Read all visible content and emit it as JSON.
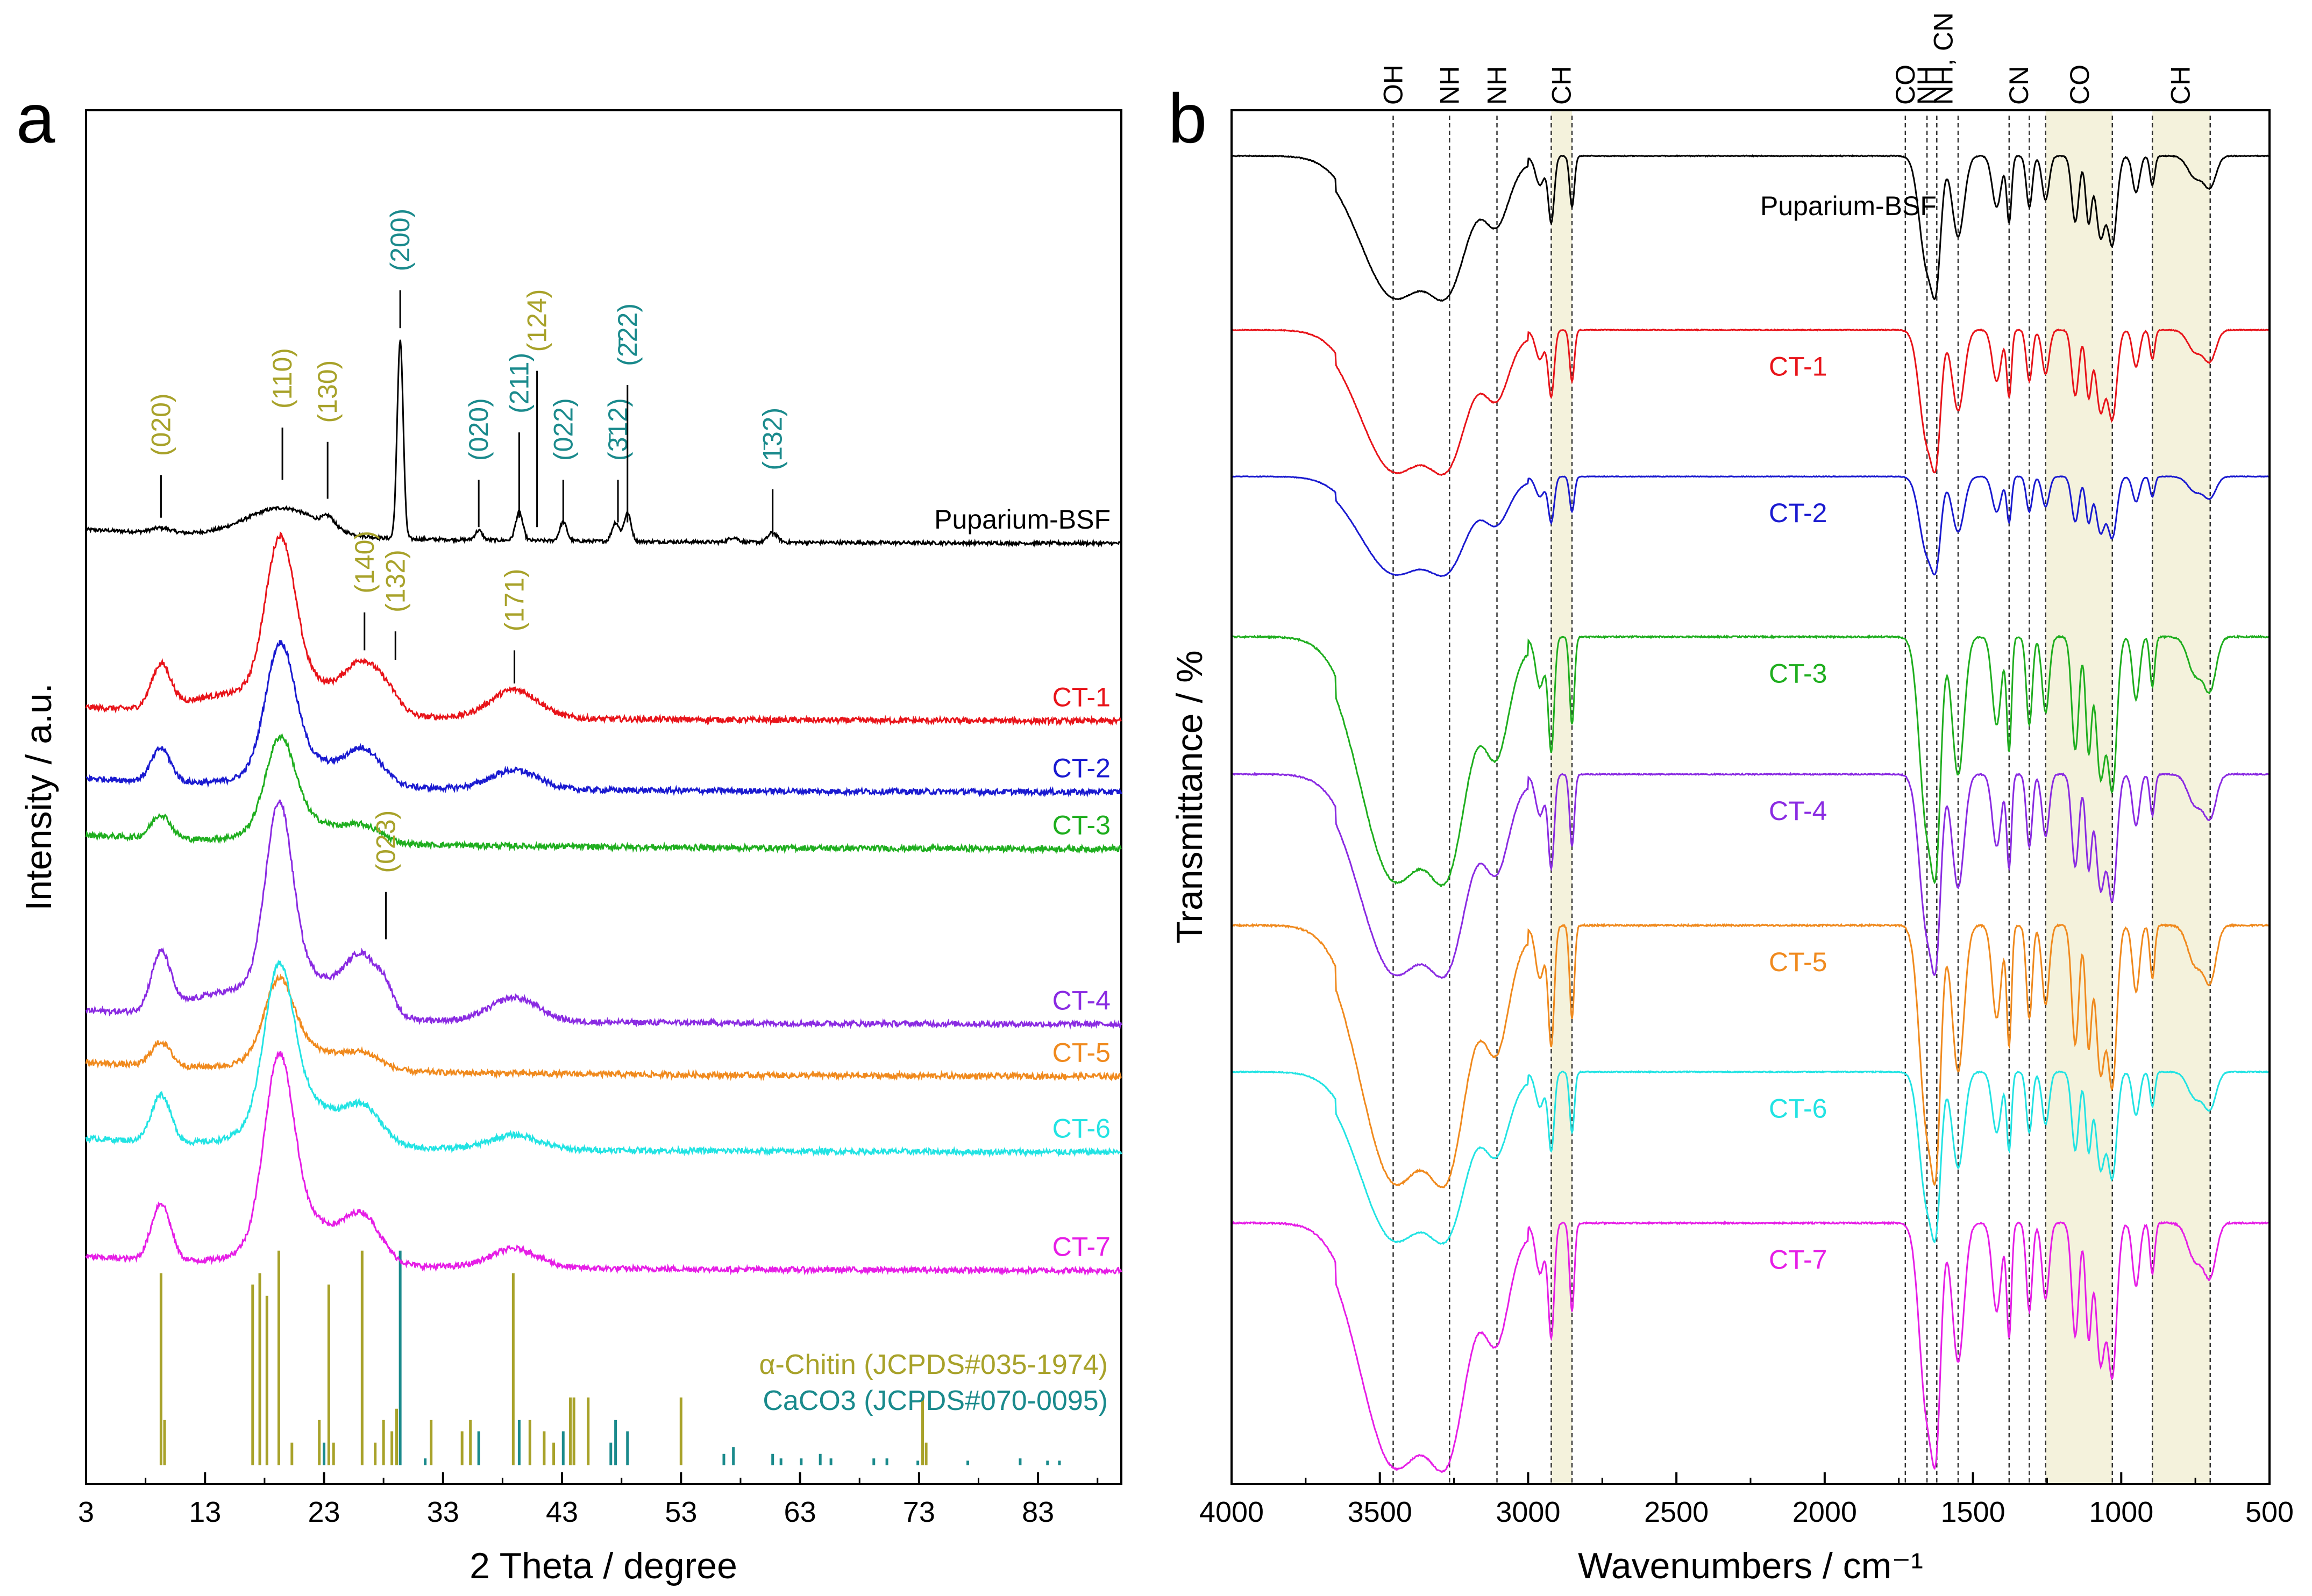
{
  "panels": {
    "a_letter": "a",
    "b_letter": "b"
  },
  "colors": {
    "black": "#000000",
    "red": "#e8141a",
    "blue": "#1a1ad0",
    "green": "#1fae1f",
    "purple": "#8a2be2",
    "orange": "#f08a1e",
    "cyan": "#22e3e3",
    "magenta": "#e61ee6",
    "olive": "#a8a22a",
    "teal": "#1a8a8c",
    "band": "#f4f2dc"
  },
  "chart_data": [
    {
      "type": "line",
      "title": "",
      "xlabel": "2 Theta / degree",
      "ylabel": "Intensity / a.u.",
      "xlim": [
        3,
        90
      ],
      "xticks": [
        3,
        13,
        23,
        33,
        43,
        53,
        63,
        73,
        83
      ],
      "xtick_labels": [
        "3",
        "13",
        "23",
        "33",
        "43",
        "53",
        "63",
        "73",
        "83"
      ],
      "series": [
        {
          "name": "Puparium-BSF",
          "color": "#000000",
          "baseline": 0.915,
          "slope": 0.0,
          "peaks": [
            [
              9.3,
              0.01,
              0.8
            ],
            [
              19.5,
              0.06,
              3.0
            ],
            [
              23.4,
              0.02,
              0.5
            ],
            [
              29.4,
              0.42,
              0.25
            ],
            [
              36.0,
              0.02,
              0.3
            ],
            [
              39.4,
              0.06,
              0.3
            ],
            [
              43.1,
              0.04,
              0.3
            ],
            [
              47.5,
              0.04,
              0.3
            ],
            [
              48.5,
              0.06,
              0.3
            ],
            [
              57.4,
              0.01,
              0.4
            ],
            [
              60.7,
              0.02,
              0.4
            ]
          ]
        },
        {
          "name": "CT-1",
          "color": "#e8141a",
          "baseline": 1.29,
          "slope": 0.0,
          "peaks": [
            [
              9.3,
              0.09,
              0.8
            ],
            [
              19.3,
              0.3,
              1.2
            ],
            [
              20.8,
              0.08,
              3.0
            ],
            [
              26.3,
              0.1,
              1.5
            ],
            [
              28.5,
              0.03,
              1.0
            ],
            [
              39.0,
              0.06,
              2.0
            ],
            [
              14,
              0.03,
              3
            ]
          ]
        },
        {
          "name": "CT-2",
          "color": "#1a1ad0",
          "baseline": 1.44,
          "slope": 0.0,
          "peaks": [
            [
              9.3,
              0.07,
              0.8
            ],
            [
              19.3,
              0.25,
              1.2
            ],
            [
              21,
              0.06,
              3.0
            ],
            [
              26.4,
              0.07,
              1.5
            ],
            [
              39.0,
              0.04,
              2.0
            ]
          ]
        },
        {
          "name": "CT-3",
          "color": "#1fae1f",
          "baseline": 1.56,
          "slope": 0.0,
          "peaks": [
            [
              9.3,
              0.05,
              0.8
            ],
            [
              19.3,
              0.18,
              1.2
            ],
            [
              21,
              0.05,
              3.0
            ],
            [
              26.4,
              0.03,
              1.5
            ]
          ]
        },
        {
          "name": "CT-4",
          "color": "#8a2be2",
          "baseline": 1.93,
          "slope": 0.0,
          "peaks": [
            [
              9.3,
              0.12,
              0.8
            ],
            [
              19.2,
              0.36,
              1.1
            ],
            [
              20.8,
              0.1,
              3.0
            ],
            [
              26.3,
              0.12,
              1.5
            ],
            [
              28.2,
              0.03,
              0.6
            ],
            [
              39.0,
              0.05,
              2.0
            ],
            [
              14,
              0.04,
              3
            ]
          ]
        },
        {
          "name": "CT-5",
          "color": "#f08a1e",
          "baseline": 2.04,
          "slope": 0.0,
          "peaks": [
            [
              9.3,
              0.05,
              0.8
            ],
            [
              19.2,
              0.15,
              1.2
            ],
            [
              21,
              0.05,
              3.0
            ],
            [
              26.4,
              0.03,
              1.5
            ]
          ]
        },
        {
          "name": "CT-6",
          "color": "#22e3e3",
          "baseline": 2.2,
          "slope": 0.0,
          "peaks": [
            [
              9.3,
              0.1,
              0.8
            ],
            [
              19.2,
              0.3,
              1.2
            ],
            [
              21,
              0.1,
              3.0
            ],
            [
              26.4,
              0.07,
              1.5
            ],
            [
              39.0,
              0.03,
              2.0
            ]
          ]
        },
        {
          "name": "CT-7",
          "color": "#e61ee6",
          "baseline": 2.45,
          "slope": 0.0,
          "peaks": [
            [
              9.3,
              0.12,
              0.8
            ],
            [
              19.2,
              0.36,
              1.2
            ],
            [
              21,
              0.1,
              3.0
            ],
            [
              26.3,
              0.09,
              1.5
            ],
            [
              39.0,
              0.04,
              2.0
            ]
          ]
        }
      ],
      "peak_labels_olive": [
        {
          "label": "(020)",
          "x": 9.3,
          "line": [
            0.86,
            0.77
          ],
          "text_y": 0.73
        },
        {
          "label": "(110)",
          "x": 19.5,
          "line": [
            0.78,
            0.67
          ],
          "text_y": 0.63
        },
        {
          "label": "(130)",
          "x": 23.3,
          "line": [
            0.82,
            0.7
          ],
          "text_y": 0.66
        },
        {
          "label": "(124)",
          "x": 40.9,
          "line": [
            0.88,
            0.55
          ],
          "text_y": 0.51
        },
        {
          "label": "(140)",
          "x": 26.4,
          "line": [
            1.14,
            1.06
          ],
          "text_y": 1.02
        },
        {
          "label": "(132)",
          "x": 29.0,
          "line": [
            1.16,
            1.1
          ],
          "text_y": 1.06
        },
        {
          "label": "(171)",
          "x": 39.0,
          "line": [
            1.21,
            1.14
          ],
          "text_y": 1.1
        },
        {
          "label": "(023)",
          "x": 28.2,
          "line": [
            1.75,
            1.65
          ],
          "text_y": 1.61
        }
      ],
      "peak_labels_teal": [
        {
          "label": "(200)",
          "x": 29.4,
          "line": [
            0.46,
            0.38
          ],
          "text_y": 0.34
        },
        {
          "label": "(020)",
          "x": 36.0,
          "line": [
            0.88,
            0.78
          ],
          "text_y": 0.74
        },
        {
          "label": "(211)",
          "x": 39.4,
          "line": [
            0.86,
            0.68
          ],
          "text_y": 0.64
        },
        {
          "label": "(022)",
          "x": 43.1,
          "line": [
            0.87,
            0.78
          ],
          "text_y": 0.74
        },
        {
          "label": "(3̄12)",
          "x": 47.7,
          "line": [
            0.87,
            0.78
          ],
          "text_y": 0.74
        },
        {
          "label": "(2̄22)",
          "x": 48.5,
          "line": [
            0.87,
            0.58
          ],
          "text_y": 0.54
        },
        {
          "label": "(1̄32)",
          "x": 60.7,
          "line": [
            0.9,
            0.8
          ],
          "text_y": 0.76
        }
      ],
      "reference_olive": {
        "label": "α-Chitin (JCPDS#035-1974)",
        "positions": [
          9.3,
          9.6,
          17.0,
          17.6,
          18.2,
          19.2,
          20.3,
          22.6,
          23.4,
          23.8,
          26.2,
          27.3,
          28.0,
          28.7,
          29.1,
          32.0,
          34.6,
          35.3,
          38.9,
          40.3,
          41.5,
          42.3,
          43.7,
          44.0,
          45.2,
          53.0,
          73.3,
          73.6
        ],
        "heights": [
          0.85,
          0.2,
          0.8,
          0.85,
          0.75,
          0.95,
          0.1,
          0.2,
          0.8,
          0.1,
          0.95,
          0.1,
          0.2,
          0.15,
          0.25,
          0.2,
          0.15,
          0.2,
          0.85,
          0.2,
          0.15,
          0.1,
          0.3,
          0.3,
          0.3,
          0.3,
          0.3,
          0.1
        ]
      },
      "reference_teal": {
        "label": "CaCO3 (JCPDS#070-0095)",
        "positions": [
          23.0,
          29.4,
          31.5,
          36.0,
          39.4,
          43.1,
          47.1,
          47.5,
          48.5,
          56.6,
          57.4,
          60.7,
          61.4,
          63.1,
          64.7,
          65.6,
          69.2,
          70.3,
          72.9,
          77.1,
          81.5,
          83.8,
          84.8
        ],
        "heights": [
          0.1,
          0.95,
          0.03,
          0.15,
          0.2,
          0.15,
          0.1,
          0.2,
          0.15,
          0.05,
          0.08,
          0.05,
          0.03,
          0.03,
          0.05,
          0.03,
          0.03,
          0.03,
          0.02,
          0.02,
          0.03,
          0.02,
          0.02
        ]
      }
    },
    {
      "type": "line",
      "title": "",
      "xlabel": "Wavenumbers / cm⁻¹",
      "ylabel": "Transmittance / %",
      "xlim": [
        4000,
        500
      ],
      "xticks": [
        4000,
        3500,
        3000,
        2500,
        2000,
        1500,
        1000,
        500
      ],
      "xtick_labels": [
        "4000",
        "3500",
        "3000",
        "2500",
        "2000",
        "1500",
        "1000",
        "500"
      ],
      "band_markers": [
        {
          "label": "OH",
          "x": 3455
        },
        {
          "label": "NH",
          "x": 3265
        },
        {
          "label": "NH",
          "x": 3105
        },
        {
          "label": "CH",
          "x": 2922
        },
        {
          "label": "CH",
          "x": 2852
        },
        {
          "label": "CO",
          "x": 1728
        },
        {
          "label": "NH",
          "x": 1655
        },
        {
          "label": "NH, CN",
          "x": 1622
        },
        {
          "label": "CN",
          "x": 1550
        },
        {
          "label": "CN",
          "x": 1378
        },
        {
          "label": "CO",
          "x": 1310
        },
        {
          "label": "CO",
          "x": 1255
        },
        {
          "label": "CH",
          "x": 1030
        },
        {
          "label": "CH",
          "x": 895
        },
        {
          "label": "CH",
          "x": 700
        }
      ],
      "band_top_labels": [
        {
          "label": "OH",
          "x": 3455
        },
        {
          "label": "NH",
          "x": 3265
        },
        {
          "label": "NH",
          "x": 3105
        },
        {
          "label": "CH",
          "x": 2887
        },
        {
          "label": "CO",
          "x": 1728
        },
        {
          "label": "NH",
          "x": 1655
        },
        {
          "label": "NH, CN",
          "x": 1600
        },
        {
          "label": "CN",
          "x": 1345
        },
        {
          "label": "CO",
          "x": 1140
        },
        {
          "label": "CH",
          "x": 800
        }
      ],
      "shaded_bands": [
        [
          2922,
          2852
        ],
        [
          1255,
          1030
        ],
        [
          895,
          700
        ]
      ],
      "series": [
        {
          "name": "Puparium-BSF",
          "color": "#000000",
          "offset": 0.0,
          "scale": 0.32,
          "label_x": 1920
        },
        {
          "name": "CT-1",
          "color": "#e8141a",
          "offset": 0.38,
          "scale": 0.32,
          "label_x": 2090
        },
        {
          "name": "CT-2",
          "color": "#1a1ad0",
          "offset": 0.7,
          "scale": 0.22,
          "label_x": 2090
        },
        {
          "name": "CT-3",
          "color": "#1fae1f",
          "offset": 1.05,
          "scale": 0.55,
          "label_x": 2090
        },
        {
          "name": "CT-4",
          "color": "#8a2be2",
          "offset": 1.35,
          "scale": 0.45,
          "label_x": 2090
        },
        {
          "name": "CT-5",
          "color": "#f08a1e",
          "offset": 1.68,
          "scale": 0.58,
          "label_x": 2090
        },
        {
          "name": "CT-6",
          "color": "#22e3e3",
          "offset": 2.0,
          "scale": 0.38,
          "label_x": 2090
        },
        {
          "name": "CT-7",
          "color": "#e61ee6",
          "offset": 2.33,
          "scale": 0.55,
          "label_x": 2090
        }
      ]
    }
  ]
}
